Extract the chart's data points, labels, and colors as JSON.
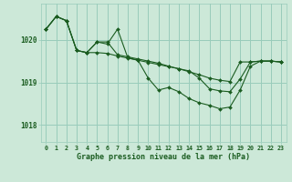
{
  "background_color": "#cce8d8",
  "grid_color": "#99ccbb",
  "line_color": "#1a5c20",
  "marker_color": "#1a5c20",
  "text_color": "#1a5c20",
  "xlabel": "Graphe pression niveau de la mer (hPa)",
  "xlim": [
    -0.5,
    23.5
  ],
  "ylim": [
    1017.6,
    1020.85
  ],
  "yticks": [
    1018,
    1019,
    1020
  ],
  "xticks": [
    0,
    1,
    2,
    3,
    4,
    5,
    6,
    7,
    8,
    9,
    10,
    11,
    12,
    13,
    14,
    15,
    16,
    17,
    18,
    19,
    20,
    21,
    22,
    23
  ],
  "series": [
    [
      1020.25,
      1020.55,
      1020.45,
      1019.75,
      1019.7,
      1019.95,
      1019.95,
      1019.65,
      1019.6,
      1019.55,
      1019.5,
      1019.45,
      1019.38,
      1019.32,
      1019.25,
      1019.18,
      1019.1,
      1019.05,
      1019.02,
      1019.48,
      1019.48,
      1019.5,
      1019.5,
      1019.48
    ],
    [
      1020.25,
      1020.55,
      1020.45,
      1019.75,
      1019.7,
      1019.95,
      1019.9,
      1020.25,
      1019.58,
      1019.52,
      1019.1,
      1018.82,
      1018.88,
      1018.78,
      1018.62,
      1018.52,
      1018.46,
      1018.38,
      1018.42,
      1018.82,
      1019.38,
      1019.5,
      1019.5,
      1019.48
    ],
    [
      1020.25,
      1020.55,
      1020.45,
      1019.75,
      1019.7,
      1019.7,
      1019.68,
      1019.62,
      1019.57,
      1019.52,
      1019.47,
      1019.42,
      1019.37,
      1019.32,
      1019.27,
      1019.1,
      1018.85,
      1018.8,
      1018.78,
      1019.08,
      1019.48,
      1019.5,
      1019.5,
      1019.48
    ]
  ]
}
